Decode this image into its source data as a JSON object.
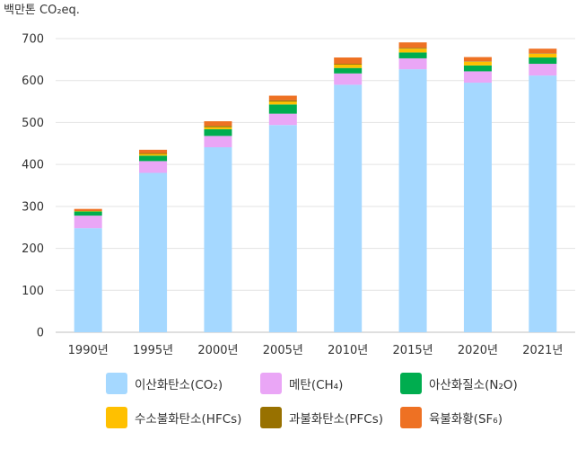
{
  "chart_data": {
    "type": "bar",
    "stacked": true,
    "unit_label": "백만톤 CO₂eq.",
    "categories": [
      "1990년",
      "1995년",
      "2000년",
      "2005년",
      "2010년",
      "2015년",
      "2020년",
      "2021년"
    ],
    "ylim": [
      0,
      700
    ],
    "yticks": [
      0,
      100,
      200,
      300,
      400,
      500,
      600,
      700
    ],
    "grid": true,
    "legend_position": "bottom",
    "series": [
      {
        "name": "이산화탄소(CO₂)",
        "color": "#a5d8ff",
        "values": [
          248,
          380,
          441,
          494,
          590,
          627,
          595,
          612
        ]
      },
      {
        "name": "메탄(CH₄)",
        "color": "#eaa6f6",
        "values": [
          30,
          28,
          27,
          27,
          27,
          26,
          27,
          28
        ]
      },
      {
        "name": "아산화질소(N₂O)",
        "color": "#00ad4f",
        "values": [
          10,
          13,
          16,
          22,
          13,
          14,
          14,
          15
        ]
      },
      {
        "name": "수소불화탄소(HFCs)",
        "color": "#ffc000",
        "values": [
          1,
          4,
          5,
          7,
          8,
          9,
          9,
          9
        ]
      },
      {
        "name": "과불화탄소(PFCs)",
        "color": "#987100",
        "values": [
          0,
          2,
          3,
          3,
          2,
          2,
          1,
          1
        ]
      },
      {
        "name": "육불화황(SF₆)",
        "color": "#ee7123",
        "values": [
          5,
          8,
          11,
          11,
          15,
          13,
          10,
          11
        ]
      }
    ]
  }
}
